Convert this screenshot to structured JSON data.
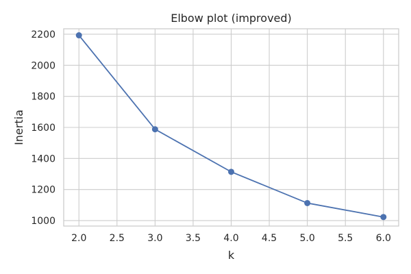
{
  "chart_data": {
    "type": "line",
    "title": "Elbow plot (improved)",
    "xlabel": "k",
    "ylabel": "Inertia",
    "xlim": [
      1.8,
      6.2
    ],
    "ylim": [
      965,
      2235
    ],
    "x_ticks": [
      2.0,
      2.5,
      3.0,
      3.5,
      4.0,
      4.5,
      5.0,
      5.5,
      6.0
    ],
    "x_tick_labels": [
      "2.0",
      "2.5",
      "3.0",
      "3.5",
      "4.0",
      "4.5",
      "5.0",
      "5.5",
      "6.0"
    ],
    "y_ticks": [
      1000,
      1200,
      1400,
      1600,
      1800,
      2000,
      2200
    ],
    "y_tick_labels": [
      "1000",
      "1200",
      "1400",
      "1600",
      "1800",
      "2000",
      "2200"
    ],
    "grid": true,
    "marker": "circle",
    "series": [
      {
        "x": [
          2,
          3,
          4,
          5,
          6
        ],
        "values": [
          2193,
          1588,
          1314,
          1113,
          1023
        ],
        "color": "#4c72b0"
      }
    ]
  }
}
